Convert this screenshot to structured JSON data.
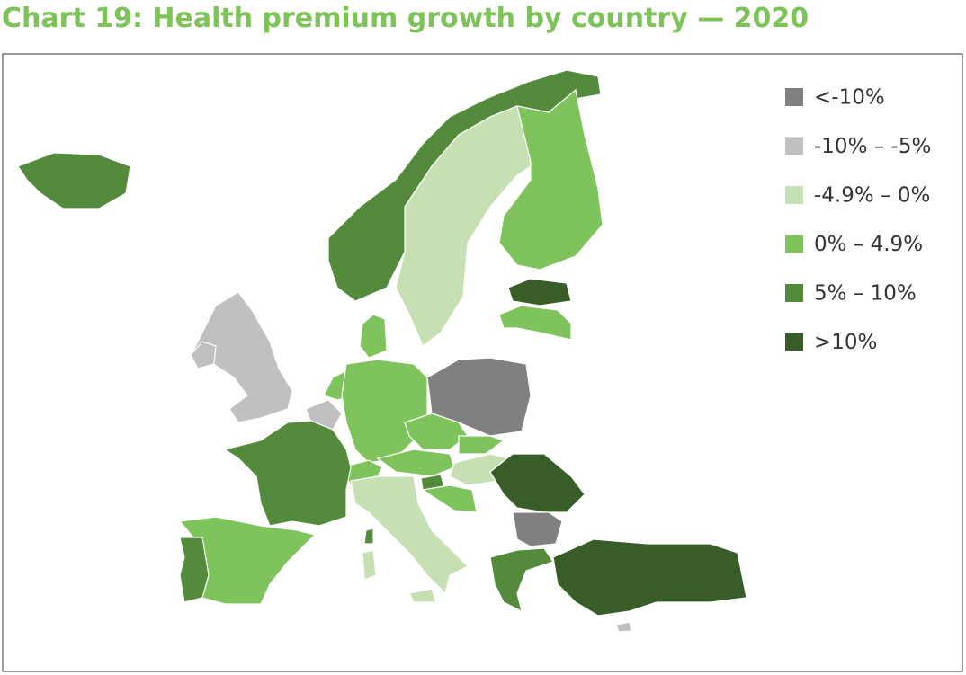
{
  "title": "Chart 19: Health premium growth by country — 2020",
  "legend": {
    "items": [
      {
        "label": "<-10%",
        "color": "#808080"
      },
      {
        "label": "-10% – -5%",
        "color": "#c0c0c0"
      },
      {
        "label": "-4.9% – 0%",
        "color": "#c6e0b4"
      },
      {
        "label": "0% – 4.9%",
        "color": "#7fc35d"
      },
      {
        "label": "5% – 10%",
        "color": "#548a3c"
      },
      {
        "label": ">10%",
        "color": "#385d28"
      }
    ]
  }
}
